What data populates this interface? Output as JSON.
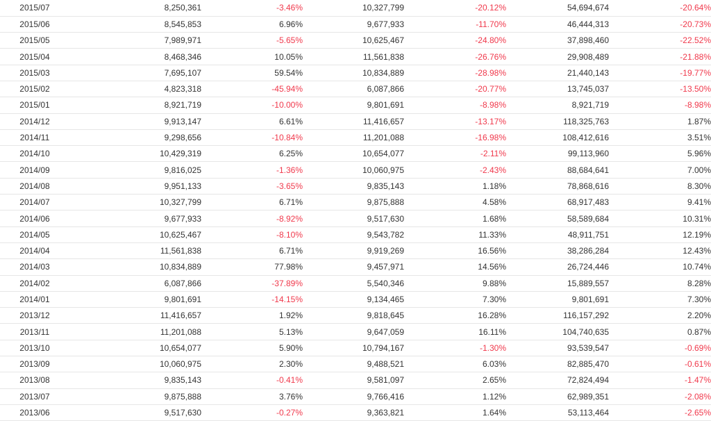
{
  "table": {
    "rows": [
      [
        "2015/07",
        "8,250,361",
        "-3.46%",
        "10,327,799",
        "-20.12%",
        "54,694,674",
        "-20.64%"
      ],
      [
        "2015/06",
        "8,545,853",
        "6.96%",
        "9,677,933",
        "-11.70%",
        "46,444,313",
        "-20.73%"
      ],
      [
        "2015/05",
        "7,989,971",
        "-5.65%",
        "10,625,467",
        "-24.80%",
        "37,898,460",
        "-22.52%"
      ],
      [
        "2015/04",
        "8,468,346",
        "10.05%",
        "11,561,838",
        "-26.76%",
        "29,908,489",
        "-21.88%"
      ],
      [
        "2015/03",
        "7,695,107",
        "59.54%",
        "10,834,889",
        "-28.98%",
        "21,440,143",
        "-19.77%"
      ],
      [
        "2015/02",
        "4,823,318",
        "-45.94%",
        "6,087,866",
        "-20.77%",
        "13,745,037",
        "-13.50%"
      ],
      [
        "2015/01",
        "8,921,719",
        "-10.00%",
        "9,801,691",
        "-8.98%",
        "8,921,719",
        "-8.98%"
      ],
      [
        "2014/12",
        "9,913,147",
        "6.61%",
        "11,416,657",
        "-13.17%",
        "118,325,763",
        "1.87%"
      ],
      [
        "2014/11",
        "9,298,656",
        "-10.84%",
        "11,201,088",
        "-16.98%",
        "108,412,616",
        "3.51%"
      ],
      [
        "2014/10",
        "10,429,319",
        "6.25%",
        "10,654,077",
        "-2.11%",
        "99,113,960",
        "5.96%"
      ],
      [
        "2014/09",
        "9,816,025",
        "-1.36%",
        "10,060,975",
        "-2.43%",
        "88,684,641",
        "7.00%"
      ],
      [
        "2014/08",
        "9,951,133",
        "-3.65%",
        "9,835,143",
        "1.18%",
        "78,868,616",
        "8.30%"
      ],
      [
        "2014/07",
        "10,327,799",
        "6.71%",
        "9,875,888",
        "4.58%",
        "68,917,483",
        "9.41%"
      ],
      [
        "2014/06",
        "9,677,933",
        "-8.92%",
        "9,517,630",
        "1.68%",
        "58,589,684",
        "10.31%"
      ],
      [
        "2014/05",
        "10,625,467",
        "-8.10%",
        "9,543,782",
        "11.33%",
        "48,911,751",
        "12.19%"
      ],
      [
        "2014/04",
        "11,561,838",
        "6.71%",
        "9,919,269",
        "16.56%",
        "38,286,284",
        "12.43%"
      ],
      [
        "2014/03",
        "10,834,889",
        "77.98%",
        "9,457,971",
        "14.56%",
        "26,724,446",
        "10.74%"
      ],
      [
        "2014/02",
        "6,087,866",
        "-37.89%",
        "5,540,346",
        "9.88%",
        "15,889,557",
        "8.28%"
      ],
      [
        "2014/01",
        "9,801,691",
        "-14.15%",
        "9,134,465",
        "7.30%",
        "9,801,691",
        "7.30%"
      ],
      [
        "2013/12",
        "11,416,657",
        "1.92%",
        "9,818,645",
        "16.28%",
        "116,157,292",
        "2.20%"
      ],
      [
        "2013/11",
        "11,201,088",
        "5.13%",
        "9,647,059",
        "16.11%",
        "104,740,635",
        "0.87%"
      ],
      [
        "2013/10",
        "10,654,077",
        "5.90%",
        "10,794,167",
        "-1.30%",
        "93,539,547",
        "-0.69%"
      ],
      [
        "2013/09",
        "10,060,975",
        "2.30%",
        "9,488,521",
        "6.03%",
        "82,885,470",
        "-0.61%"
      ],
      [
        "2013/08",
        "9,835,143",
        "-0.41%",
        "9,581,097",
        "2.65%",
        "72,824,494",
        "-1.47%"
      ],
      [
        "2013/07",
        "9,875,888",
        "3.76%",
        "9,766,416",
        "1.12%",
        "62,989,351",
        "-2.08%"
      ],
      [
        "2013/06",
        "9,517,630",
        "-0.27%",
        "9,363,821",
        "1.64%",
        "53,113,464",
        "-2.65%"
      ]
    ]
  },
  "colors": {
    "negative": "#f0384b",
    "positive": "#333333",
    "divider": "#e6e6e6"
  }
}
